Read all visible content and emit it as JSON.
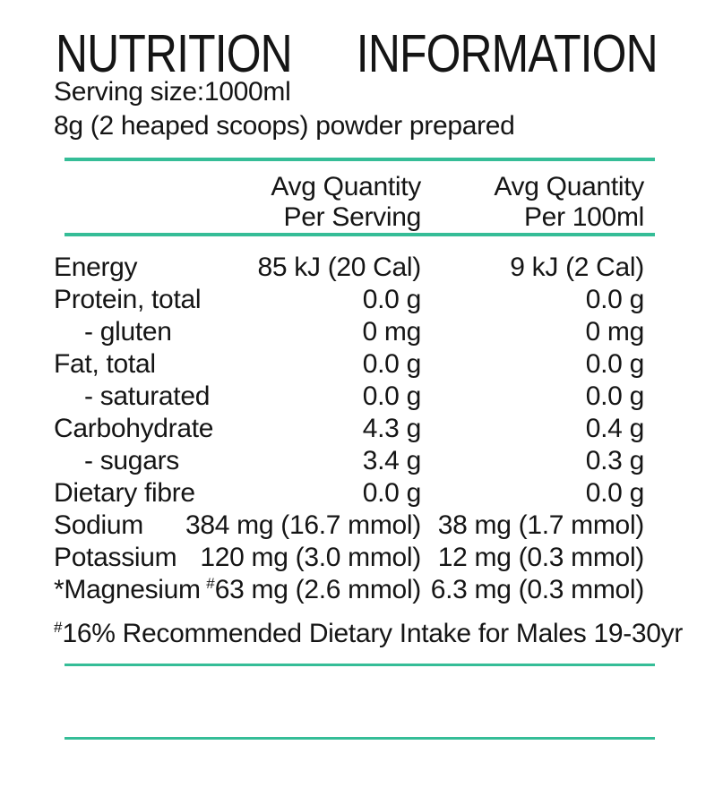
{
  "title": {
    "word1": "NUTRITION",
    "word2": "INFORMATION"
  },
  "serving_info": {
    "serving_size_line": "Serving size:1000ml",
    "preparation_line": "8g (2 heaped scoops) powder prepared"
  },
  "table": {
    "headers": [
      {
        "line1": "Avg Quantity",
        "line2": "Per Serving"
      },
      {
        "line1": "Avg Quantity",
        "line2": "Per 100ml"
      }
    ],
    "rows": [
      {
        "label": "Energy",
        "indent": false,
        "serving": "85 kJ (20 Cal)",
        "per_100ml": "9 kJ (2 Cal)"
      },
      {
        "label": "Protein, total",
        "indent": false,
        "serving": "0.0 g",
        "per_100ml": "0.0 g"
      },
      {
        "label": "- gluten",
        "indent": true,
        "serving": "0 mg",
        "per_100ml": "0 mg"
      },
      {
        "label": "Fat, total",
        "indent": false,
        "serving": "0.0 g",
        "per_100ml": "0.0 g"
      },
      {
        "label": "- saturated",
        "indent": true,
        "serving": "0.0 g",
        "per_100ml": "0.0 g"
      },
      {
        "label": "Carbohydrate",
        "indent": false,
        "serving": "4.3 g",
        "per_100ml": "0.4 g"
      },
      {
        "label": "- sugars",
        "indent": true,
        "serving": "3.4 g",
        "per_100ml": "0.3 g"
      },
      {
        "label": "Dietary fibre",
        "indent": false,
        "serving": "0.0 g",
        "per_100ml": "0.0 g"
      },
      {
        "label": "Sodium",
        "indent": false,
        "serving": "384 mg (16.7 mmol)",
        "per_100ml": "38 mg (1.7 mmol)"
      },
      {
        "label": "Potassium",
        "indent": false,
        "serving": "120 mg (3.0 mmol)",
        "per_100ml": "12 mg (0.3 mmol)"
      },
      {
        "label": "*Magnesium",
        "indent": false,
        "serving_sup": "#",
        "serving": "63 mg (2.6 mmol)",
        "per_100ml": "6.3 mg (0.3 mmol)"
      }
    ]
  },
  "footnote": {
    "marker": "#",
    "text": "16% Recommended Dietary Intake for Males 19-30yr"
  },
  "colors": {
    "accent": "#35bd97",
    "text": "#151515",
    "background": "#ffffff"
  }
}
